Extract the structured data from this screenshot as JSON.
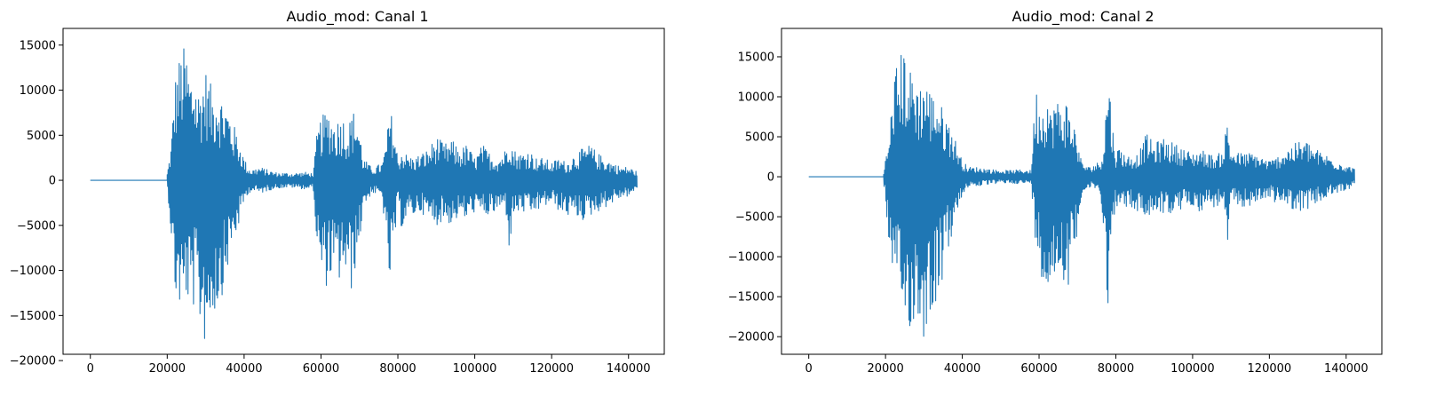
{
  "chart_data": [
    {
      "type": "line",
      "title": "Audio_mod: Canal 1",
      "xlabel": "",
      "ylabel": "",
      "xlim": [
        -7100,
        149300
      ],
      "ylim": [
        -19300,
        16850
      ],
      "xticks": [
        0,
        20000,
        40000,
        60000,
        80000,
        100000,
        120000,
        140000
      ],
      "yticks": [
        -20000,
        -15000,
        -10000,
        -5000,
        0,
        5000,
        10000,
        15000
      ],
      "grid": false,
      "legend": "none",
      "color": "#1f77b4",
      "n_samples": 142200,
      "silence_until": 20000,
      "envelope": {
        "x": [
          20000,
          21000,
          22000,
          23000,
          24000,
          25000,
          26000,
          27000,
          28000,
          29000,
          30000,
          31000,
          32000,
          33000,
          34000,
          35000,
          36000,
          37000,
          38000,
          39000,
          40000,
          41000,
          42000,
          44000,
          48000,
          52000,
          56000,
          58000,
          59000,
          60000,
          61000,
          62000,
          63000,
          64000,
          65000,
          66000,
          67000,
          68000,
          69000,
          70000,
          71000,
          72000,
          73000,
          74000,
          76000,
          77000,
          78000,
          79000,
          80000,
          81000,
          82000,
          84000,
          86000,
          88000,
          90000,
          92000,
          94000,
          96000,
          98000,
          100000,
          102000,
          104000,
          106000,
          108000,
          109000,
          110000,
          112000,
          114000,
          116000,
          118000,
          120000,
          122000,
          124000,
          126000,
          128000,
          130000,
          132000,
          134000,
          136000,
          138000,
          140000,
          142200
        ],
        "max": [
          800,
          4000,
          11500,
          13500,
          15000,
          14500,
          12000,
          12500,
          10000,
          11500,
          12500,
          11000,
          10000,
          11000,
          9500,
          9000,
          8000,
          6500,
          5500,
          4000,
          2500,
          1500,
          1200,
          1500,
          900,
          800,
          900,
          800,
          5500,
          7000,
          7500,
          8000,
          7000,
          6500,
          7500,
          7000,
          6000,
          7500,
          8000,
          6000,
          2500,
          2000,
          1500,
          1500,
          2000,
          4500,
          8000,
          6000,
          2500,
          3500,
          3000,
          2500,
          3000,
          3500,
          5000,
          4000,
          4500,
          3500,
          4000,
          2500,
          4000,
          3000,
          2500,
          3500,
          5700,
          3500,
          3000,
          3500,
          2500,
          2500,
          2000,
          2500,
          2000,
          3000,
          3500,
          4000,
          3000,
          2500,
          2000,
          1500,
          1500,
          1000
        ],
        "min": [
          -600,
          -6000,
          -13000,
          -14000,
          -15700,
          -13000,
          -15500,
          -14000,
          -15800,
          -17000,
          -18500,
          -16500,
          -15000,
          -14500,
          -13000,
          -12000,
          -9000,
          -7500,
          -6000,
          -4500,
          -2500,
          -1500,
          -1200,
          -1500,
          -900,
          -800,
          -1000,
          -900,
          -8000,
          -11000,
          -12000,
          -11500,
          -10500,
          -12500,
          -11000,
          -10000,
          -12000,
          -12500,
          -9500,
          -7500,
          -2500,
          -2500,
          -1500,
          -1500,
          -2000,
          -8500,
          -12000,
          -8000,
          -3000,
          -5500,
          -4500,
          -4000,
          -3500,
          -4500,
          -5000,
          -4500,
          -5000,
          -4000,
          -4500,
          -3500,
          -4000,
          -4000,
          -3500,
          -3000,
          -8000,
          -4000,
          -3500,
          -4000,
          -3500,
          -3000,
          -2500,
          -3500,
          -4000,
          -4000,
          -4500,
          -4000,
          -3500,
          -3000,
          -2500,
          -2000,
          -1800,
          -1000
        ]
      }
    },
    {
      "type": "line",
      "title": "Audio_mod: Canal 2",
      "xlabel": "",
      "ylabel": "",
      "xlim": [
        -7100,
        149300
      ],
      "ylim": [
        -22200,
        18550
      ],
      "xticks": [
        0,
        20000,
        40000,
        60000,
        80000,
        100000,
        120000,
        140000
      ],
      "yticks": [
        -20000,
        -15000,
        -10000,
        -5000,
        0,
        5000,
        10000,
        15000
      ],
      "grid": false,
      "legend": "none",
      "color": "#1f77b4",
      "n_samples": 142200,
      "silence_until": 19500,
      "envelope": {
        "x": [
          19500,
          21000,
          22000,
          23000,
          24000,
          25000,
          26000,
          27000,
          28000,
          29000,
          30000,
          31000,
          32000,
          33000,
          34000,
          35000,
          36000,
          37000,
          38000,
          39000,
          40000,
          41000,
          42000,
          44000,
          48000,
          52000,
          56000,
          58000,
          59000,
          60000,
          61000,
          62000,
          63000,
          64000,
          65000,
          66000,
          67000,
          68000,
          69000,
          70000,
          71000,
          72000,
          73000,
          74000,
          76000,
          77000,
          78000,
          79000,
          80000,
          81000,
          82000,
          84000,
          86000,
          88000,
          90000,
          92000,
          94000,
          96000,
          98000,
          100000,
          102000,
          104000,
          106000,
          108000,
          109000,
          110000,
          112000,
          114000,
          116000,
          118000,
          120000,
          122000,
          124000,
          126000,
          128000,
          130000,
          132000,
          134000,
          136000,
          138000,
          140000,
          142200
        ],
        "max": [
          800,
          5000,
          12500,
          14500,
          15500,
          16500,
          13000,
          14000,
          12500,
          11500,
          13000,
          12000,
          10500,
          11000,
          9500,
          8500,
          7500,
          6500,
          5000,
          3500,
          2000,
          1500,
          1200,
          1200,
          900,
          800,
          900,
          800,
          11500,
          10000,
          9000,
          11500,
          8000,
          10500,
          9500,
          9000,
          10000,
          8000,
          7000,
          5000,
          2000,
          1500,
          1200,
          1500,
          2000,
          5000,
          14800,
          7000,
          3000,
          4000,
          3000,
          2500,
          3000,
          5500,
          4000,
          5000,
          4500,
          4000,
          3500,
          3000,
          3500,
          3000,
          2500,
          3500,
          7500,
          3500,
          3000,
          3000,
          3000,
          2500,
          2000,
          2500,
          3500,
          4000,
          4500,
          4500,
          3500,
          3000,
          2500,
          2000,
          1500,
          1000
        ],
        "min": [
          -600,
          -9000,
          -15000,
          -17000,
          -16000,
          -20500,
          -18500,
          -20000,
          -17500,
          -19500,
          -20500,
          -18000,
          -17000,
          -16000,
          -14000,
          -13000,
          -10000,
          -8000,
          -6000,
          -4500,
          -2500,
          -1500,
          -1200,
          -1200,
          -900,
          -800,
          -900,
          -900,
          -8000,
          -10500,
          -13500,
          -15000,
          -13500,
          -14000,
          -12500,
          -11000,
          -15500,
          -13000,
          -9500,
          -7000,
          -2500,
          -2000,
          -1500,
          -1500,
          -2000,
          -9500,
          -16700,
          -8500,
          -3000,
          -5000,
          -4000,
          -4000,
          -4500,
          -5500,
          -4500,
          -4500,
          -5000,
          -4500,
          -4000,
          -3500,
          -4500,
          -3500,
          -4000,
          -3500,
          -9500,
          -4000,
          -3500,
          -4000,
          -3500,
          -3000,
          -2500,
          -3500,
          -3500,
          -4000,
          -4500,
          -4000,
          -3500,
          -3000,
          -2500,
          -2000,
          -1800,
          -1000
        ]
      }
    }
  ]
}
